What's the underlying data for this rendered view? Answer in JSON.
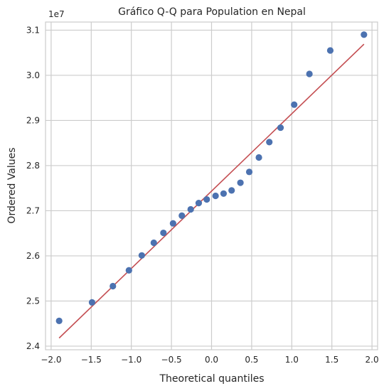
{
  "chart_data": {
    "type": "scatter",
    "title": "Gráfico Q-Q para Population en Nepal",
    "xlabel": "Theoretical quantiles",
    "ylabel": "Ordered Values",
    "y_offset_label": "1e7",
    "xlim": [
      -2.07,
      2.07
    ],
    "ylim": [
      2.392,
      3.118
    ],
    "x_ticks": [
      -2.0,
      -1.5,
      -1.0,
      -0.5,
      0.0,
      0.5,
      1.0,
      1.5,
      2.0
    ],
    "x_tick_labels": [
      "−2.0",
      "−1.5",
      "−1.0",
      "−0.5",
      "0.0",
      "0.5",
      "1.0",
      "1.5",
      "2.0"
    ],
    "y_ticks": [
      2.4,
      2.5,
      2.6,
      2.7,
      2.8,
      2.9,
      3.0,
      3.1
    ],
    "y_tick_labels": [
      "2.4",
      "2.5",
      "2.6",
      "2.7",
      "2.8",
      "2.9",
      "3.0",
      "3.1"
    ],
    "grid": true,
    "point_color": "#4c72b0",
    "line_color": "#c44e52",
    "points": [
      {
        "x": -1.9,
        "y": 2.456
      },
      {
        "x": -1.49,
        "y": 2.497
      },
      {
        "x": -1.23,
        "y": 2.533
      },
      {
        "x": -1.03,
        "y": 2.568
      },
      {
        "x": -0.87,
        "y": 2.601
      },
      {
        "x": -0.72,
        "y": 2.629
      },
      {
        "x": -0.6,
        "y": 2.651
      },
      {
        "x": -0.48,
        "y": 2.672
      },
      {
        "x": -0.37,
        "y": 2.689
      },
      {
        "x": -0.26,
        "y": 2.703
      },
      {
        "x": -0.16,
        "y": 2.717
      },
      {
        "x": -0.06,
        "y": 2.725
      },
      {
        "x": 0.05,
        "y": 2.733
      },
      {
        "x": 0.15,
        "y": 2.738
      },
      {
        "x": 0.25,
        "y": 2.745
      },
      {
        "x": 0.36,
        "y": 2.762
      },
      {
        "x": 0.47,
        "y": 2.786
      },
      {
        "x": 0.59,
        "y": 2.818
      },
      {
        "x": 0.72,
        "y": 2.852
      },
      {
        "x": 0.86,
        "y": 2.884
      },
      {
        "x": 1.03,
        "y": 2.935
      },
      {
        "x": 1.22,
        "y": 3.003
      },
      {
        "x": 1.48,
        "y": 3.055
      },
      {
        "x": 1.9,
        "y": 3.09
      }
    ],
    "fit_line": {
      "x": [
        -1.9,
        1.9
      ],
      "y": [
        2.418,
        3.069
      ]
    }
  }
}
